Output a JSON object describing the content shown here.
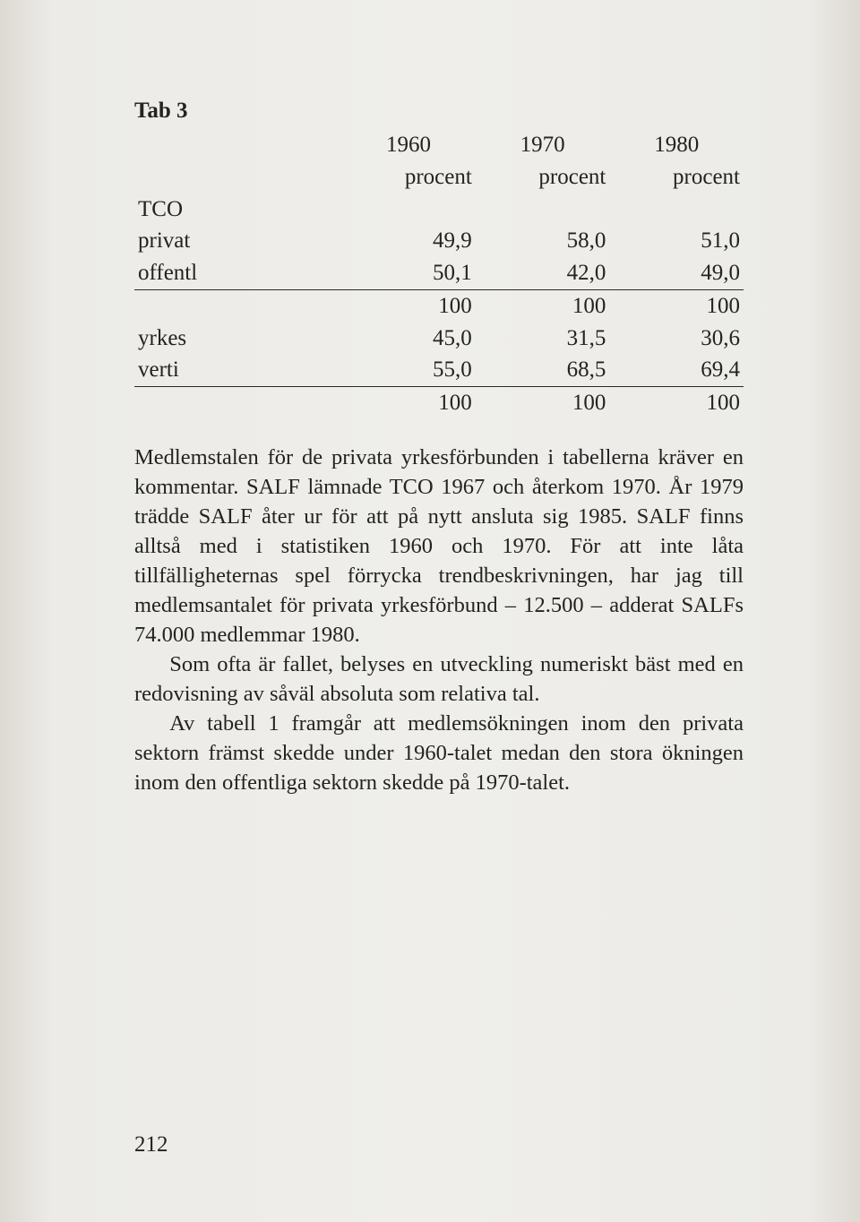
{
  "table": {
    "title": "Tab 3",
    "header_years": [
      "1960",
      "1970",
      "1980"
    ],
    "header_sub": [
      "procent",
      "procent",
      "procent"
    ],
    "section1_label": "TCO",
    "rows1": [
      {
        "label": "privat",
        "v": [
          "49,9",
          "58,0",
          "51,0"
        ]
      },
      {
        "label": "offentl",
        "v": [
          "50,1",
          "42,0",
          "49,0"
        ]
      }
    ],
    "totals1": [
      "100",
      "100",
      "100"
    ],
    "rows2": [
      {
        "label": "yrkes",
        "v": [
          "45,0",
          "31,5",
          "30,6"
        ]
      },
      {
        "label": "verti",
        "v": [
          "55,0",
          "68,5",
          "69,4"
        ]
      }
    ],
    "totals2": [
      "100",
      "100",
      "100"
    ],
    "col_align": [
      "left",
      "right",
      "right",
      "right"
    ],
    "rule_color": "#2a2a2a",
    "font_size_pt": 19,
    "background_color": "#efeeea",
    "text_color": "#232323"
  },
  "paragraphs": {
    "p1": "Medlemstalen för de privata yrkesförbunden i tabellerna kräver en kommentar. SALF lämnade TCO 1967 och åter­kom 1970. År 1979 trädde SALF åter ur för att på nytt an­sluta sig 1985. SALF finns alltså med i statistiken 1960 och 1970. För att inte låta tillfälligheternas spel förrycka trend­beskrivningen, har jag till medlemsantalet för privata yr­kesförbund – 12.500 – adderat SALFs 74.000 medlemmar 1980.",
    "p2": "Som ofta är fallet, belyses en utveckling numeriskt bäst med en redovisning av såväl absoluta som relativa tal.",
    "p3": "Av tabell 1 framgår att medlemsökningen inom den priva­ta sektorn främst skedde under 1960-talet medan den stora ökningen inom den offentliga sektorn skedde på 1970-talet."
  },
  "page_number": "212"
}
